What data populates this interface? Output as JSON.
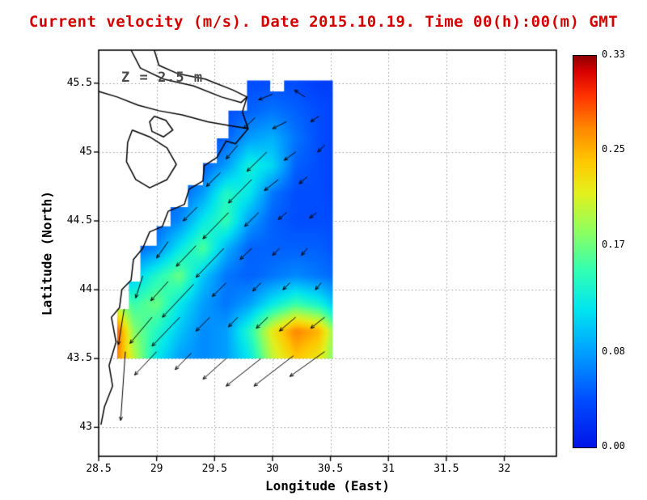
{
  "title": "Current velocity (m/s). Date 2015.10.19. Time 00(h):00(m) GMT",
  "annotation": "Z = 2.5 m",
  "colors": {
    "title": "#d40000",
    "annotation": "#4a4a4a",
    "coast": "#000000",
    "arrow": "#000000",
    "grid_dots": "#999999",
    "frame": "#000000"
  },
  "axes": {
    "x": {
      "label": "Longitude (East)",
      "range": [
        28.5,
        32.45
      ],
      "ticks": [
        28.5,
        29,
        29.5,
        30,
        30.5,
        31,
        31.5,
        32
      ],
      "tick_labels": [
        "28.5",
        "29",
        "29.5",
        "30",
        "30.5",
        "31",
        "31.5",
        "32"
      ]
    },
    "y": {
      "label": "Latitude (North)",
      "range": [
        42.79,
        45.74
      ],
      "ticks": [
        43,
        43.5,
        44,
        44.5,
        45,
        45.5
      ],
      "tick_labels": [
        "43",
        "43.5",
        "44",
        "44.5",
        "45",
        "45.5"
      ]
    }
  },
  "colorbar": {
    "min": 0,
    "max": 0.33,
    "ticks": [
      0.0,
      0.08,
      0.17,
      0.25,
      0.33
    ],
    "tick_labels": [
      "0.00",
      "0.08",
      "0.17",
      "0.25",
      "0.33"
    ],
    "stops": [
      [
        0.0,
        "#0013E8"
      ],
      [
        0.12,
        "#004CFF"
      ],
      [
        0.25,
        "#00A4FF"
      ],
      [
        0.35,
        "#00E4F0"
      ],
      [
        0.45,
        "#30FFB4"
      ],
      [
        0.55,
        "#8CFF60"
      ],
      [
        0.65,
        "#E4F01C"
      ],
      [
        0.73,
        "#FFC800"
      ],
      [
        0.82,
        "#FF8200"
      ],
      [
        0.9,
        "#FF3000"
      ],
      [
        0.96,
        "#D80000"
      ],
      [
        1.0,
        "#8C0000"
      ]
    ]
  },
  "chart_data": {
    "type": "heatmap",
    "quantity": "current velocity",
    "units": "m/s",
    "depth": "2.5 m",
    "datetime": "2015.10.19 00:00 GMT",
    "grid": {
      "lon": [
        28.6,
        28.8,
        29.0,
        29.2,
        29.4,
        29.6,
        29.8,
        30.0,
        30.2,
        30.4,
        30.6
      ],
      "lat": [
        43.5,
        43.7,
        43.9,
        44.1,
        44.3,
        44.5,
        44.7,
        44.9,
        45.1,
        45.3,
        45.5
      ],
      "note": "values[j][i] = speed m/s at (lat[j], lon[i]); rows south to north",
      "values": [
        [
          0.3,
          0.2,
          0.12,
          0.08,
          0.07,
          0.08,
          0.12,
          0.2,
          0.24,
          0.22,
          0.15
        ],
        [
          0.33,
          0.18,
          0.14,
          0.1,
          0.07,
          0.08,
          0.14,
          0.22,
          0.27,
          0.25,
          0.15
        ],
        [
          0.2,
          0.15,
          0.17,
          0.12,
          0.08,
          0.06,
          0.08,
          0.12,
          0.15,
          0.13,
          0.08
        ],
        [
          0.08,
          0.1,
          0.14,
          0.17,
          0.1,
          0.06,
          0.05,
          0.06,
          0.07,
          0.06,
          0.05
        ],
        [
          0.04,
          0.05,
          0.07,
          0.12,
          0.16,
          0.09,
          0.05,
          0.05,
          0.05,
          0.05,
          0.04
        ],
        [
          0.03,
          0.04,
          0.05,
          0.07,
          0.12,
          0.15,
          0.08,
          0.05,
          0.04,
          0.04,
          0.04
        ],
        [
          0.03,
          0.03,
          0.04,
          0.05,
          0.08,
          0.14,
          0.12,
          0.06,
          0.04,
          0.04,
          0.03
        ],
        [
          0.03,
          0.03,
          0.03,
          0.04,
          0.05,
          0.08,
          0.13,
          0.11,
          0.05,
          0.04,
          0.03
        ],
        [
          0.03,
          0.03,
          0.03,
          0.03,
          0.04,
          0.05,
          0.08,
          0.09,
          0.06,
          0.04,
          0.03
        ],
        [
          0.03,
          0.03,
          0.03,
          0.03,
          0.03,
          0.04,
          0.05,
          0.06,
          0.05,
          0.04,
          0.03
        ],
        [
          0.02,
          0.02,
          0.02,
          0.03,
          0.03,
          0.03,
          0.04,
          0.04,
          0.04,
          0.03,
          0.03
        ]
      ]
    },
    "mask_polygons": [
      [
        [
          28.66,
          43.5
        ],
        [
          30.52,
          43.5
        ],
        [
          30.52,
          45.52
        ],
        [
          30.1,
          45.52
        ],
        [
          30.1,
          45.44
        ],
        [
          29.98,
          45.44
        ],
        [
          29.98,
          45.52
        ],
        [
          29.78,
          45.52
        ],
        [
          29.78,
          45.3
        ],
        [
          29.62,
          45.3
        ],
        [
          29.62,
          45.1
        ],
        [
          29.52,
          45.1
        ],
        [
          29.52,
          44.92
        ],
        [
          29.4,
          44.92
        ],
        [
          29.4,
          44.76
        ],
        [
          29.27,
          44.76
        ],
        [
          29.27,
          44.6
        ],
        [
          29.12,
          44.6
        ],
        [
          29.12,
          44.46
        ],
        [
          29.0,
          44.46
        ],
        [
          29.0,
          44.32
        ],
        [
          28.86,
          44.32
        ],
        [
          28.86,
          44.06
        ],
        [
          28.76,
          44.06
        ],
        [
          28.76,
          43.86
        ],
        [
          28.66,
          43.86
        ]
      ]
    ],
    "coastlines": [
      [
        [
          28.98,
          45.74
        ],
        [
          29.02,
          45.63
        ],
        [
          29.18,
          45.57
        ],
        [
          29.42,
          45.53
        ],
        [
          29.66,
          45.45
        ],
        [
          29.78,
          45.4
        ],
        [
          29.74,
          45.29
        ],
        [
          29.79,
          45.17
        ],
        [
          29.68,
          45.06
        ],
        [
          29.6,
          45.08
        ],
        [
          29.52,
          44.96
        ],
        [
          29.41,
          44.9
        ],
        [
          29.4,
          44.79
        ],
        [
          29.28,
          44.73
        ],
        [
          29.24,
          44.62
        ],
        [
          29.1,
          44.57
        ],
        [
          29.05,
          44.46
        ],
        [
          28.94,
          44.42
        ],
        [
          28.88,
          44.3
        ],
        [
          28.8,
          44.22
        ],
        [
          28.78,
          44.07
        ],
        [
          28.7,
          44.0
        ],
        [
          28.68,
          43.87
        ],
        [
          28.61,
          43.8
        ],
        [
          28.65,
          43.62
        ],
        [
          28.59,
          43.45
        ],
        [
          28.62,
          43.3
        ],
        [
          28.55,
          43.15
        ],
        [
          28.52,
          43.02
        ]
      ],
      [
        [
          28.78,
          45.74
        ],
        [
          28.86,
          45.61
        ],
        [
          29.06,
          45.53
        ],
        [
          29.32,
          45.48
        ],
        [
          29.56,
          45.4
        ],
        [
          29.73,
          45.36
        ],
        [
          29.78,
          45.4
        ]
      ],
      [
        [
          28.5,
          45.44
        ],
        [
          28.66,
          45.4
        ],
        [
          28.84,
          45.34
        ],
        [
          29.02,
          45.3
        ],
        [
          29.22,
          45.27
        ],
        [
          29.44,
          45.22
        ],
        [
          29.64,
          45.19
        ],
        [
          29.79,
          45.17
        ]
      ],
      [
        [
          28.79,
          45.16
        ],
        [
          28.94,
          45.11
        ],
        [
          29.09,
          45.03
        ],
        [
          29.17,
          44.91
        ],
        [
          29.09,
          44.8
        ],
        [
          28.94,
          44.74
        ],
        [
          28.82,
          44.8
        ],
        [
          28.74,
          44.93
        ],
        [
          28.75,
          45.07
        ],
        [
          28.79,
          45.16
        ]
      ],
      [
        [
          28.98,
          45.26
        ],
        [
          29.08,
          45.23
        ],
        [
          29.14,
          45.16
        ],
        [
          29.06,
          45.11
        ],
        [
          28.96,
          45.15
        ],
        [
          28.94,
          45.22
        ],
        [
          28.98,
          45.26
        ]
      ]
    ],
    "vectors_note": "[lon, lat, dlon, dlat] arrow tail and displacement (deg)",
    "vectors": [
      [
        30.0,
        45.42,
        -0.12,
        -0.04
      ],
      [
        30.28,
        45.4,
        -0.09,
        0.05
      ],
      [
        29.85,
        45.25,
        -0.1,
        -0.08
      ],
      [
        30.12,
        45.22,
        -0.12,
        -0.05
      ],
      [
        30.4,
        45.26,
        -0.07,
        -0.04
      ],
      [
        29.7,
        45.05,
        -0.1,
        -0.1
      ],
      [
        29.95,
        45.0,
        -0.17,
        -0.14
      ],
      [
        30.2,
        45.0,
        -0.1,
        -0.06
      ],
      [
        30.45,
        45.05,
        -0.06,
        -0.05
      ],
      [
        29.55,
        44.85,
        -0.12,
        -0.1
      ],
      [
        29.82,
        44.8,
        -0.2,
        -0.17
      ],
      [
        30.05,
        44.8,
        -0.12,
        -0.08
      ],
      [
        30.3,
        44.82,
        -0.07,
        -0.05
      ],
      [
        29.35,
        44.6,
        -0.12,
        -0.1
      ],
      [
        29.62,
        44.56,
        -0.22,
        -0.19
      ],
      [
        29.88,
        44.56,
        -0.12,
        -0.1
      ],
      [
        30.12,
        44.56,
        -0.07,
        -0.05
      ],
      [
        30.38,
        44.56,
        -0.06,
        -0.04
      ],
      [
        29.1,
        44.35,
        -0.1,
        -0.12
      ],
      [
        29.34,
        44.32,
        -0.17,
        -0.15
      ],
      [
        29.58,
        44.3,
        -0.24,
        -0.21
      ],
      [
        29.82,
        44.3,
        -0.1,
        -0.08
      ],
      [
        30.06,
        44.3,
        -0.06,
        -0.05
      ],
      [
        30.3,
        44.3,
        -0.05,
        -0.05
      ],
      [
        28.88,
        44.1,
        -0.06,
        -0.16
      ],
      [
        29.1,
        44.06,
        -0.15,
        -0.14
      ],
      [
        29.32,
        44.04,
        -0.27,
        -0.24
      ],
      [
        29.6,
        44.05,
        -0.12,
        -0.1
      ],
      [
        29.9,
        44.05,
        -0.07,
        -0.06
      ],
      [
        30.15,
        44.05,
        -0.06,
        -0.05
      ],
      [
        30.42,
        44.05,
        -0.05,
        -0.05
      ],
      [
        28.72,
        43.86,
        -0.05,
        -0.26
      ],
      [
        28.96,
        43.8,
        -0.19,
        -0.19
      ],
      [
        29.2,
        43.8,
        -0.24,
        -0.21
      ],
      [
        29.46,
        43.8,
        -0.12,
        -0.1
      ],
      [
        29.7,
        43.8,
        -0.08,
        -0.07
      ],
      [
        29.96,
        43.8,
        -0.1,
        -0.08
      ],
      [
        30.2,
        43.8,
        -0.14,
        -0.1
      ],
      [
        30.45,
        43.8,
        -0.12,
        -0.08
      ],
      [
        28.73,
        43.55,
        -0.04,
        -0.5
      ],
      [
        29.0,
        43.55,
        -0.19,
        -0.17
      ],
      [
        29.3,
        43.54,
        -0.14,
        -0.12
      ],
      [
        29.6,
        43.5,
        -0.2,
        -0.15
      ],
      [
        29.9,
        43.5,
        -0.3,
        -0.2
      ],
      [
        30.18,
        43.52,
        -0.34,
        -0.22
      ],
      [
        30.45,
        43.55,
        -0.3,
        -0.18
      ]
    ]
  }
}
